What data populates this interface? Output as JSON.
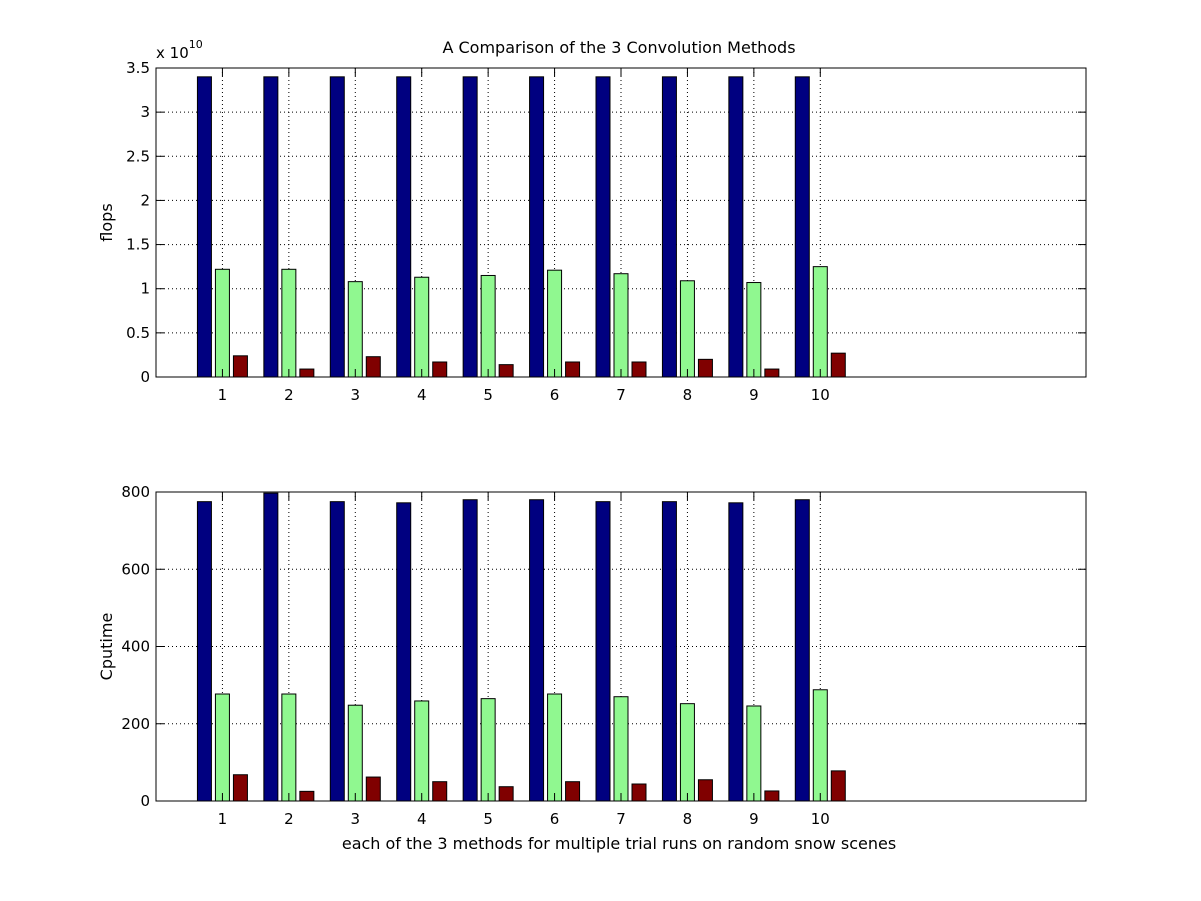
{
  "figure": {
    "title": "A Comparison of the 3 Convolution Methods"
  },
  "colors": {
    "series": [
      "#000080",
      "#90f890",
      "#800000"
    ],
    "axis": "#000000",
    "grid": "#000000",
    "background": "#ffffff"
  },
  "chart_data": [
    {
      "type": "bar",
      "title": "A Comparison of the 3 Convolution Methods",
      "xlabel": "",
      "ylabel": "flops",
      "y_exponent_label": "x 10",
      "y_exponent_power": "10",
      "categories": [
        "1",
        "2",
        "3",
        "4",
        "5",
        "6",
        "7",
        "8",
        "9",
        "10"
      ],
      "xlim": [
        0,
        14
      ],
      "ylim": [
        0,
        3.5
      ],
      "yticks": [
        0,
        0.5,
        1,
        1.5,
        2,
        2.5,
        3,
        3.5
      ],
      "ytick_labels": [
        "0",
        "0.5",
        "1",
        "1.5",
        "2",
        "2.5",
        "3",
        "3.5"
      ],
      "grid": true,
      "legend": "none",
      "series": [
        {
          "values": [
            3.4,
            3.4,
            3.4,
            3.4,
            3.4,
            3.4,
            3.4,
            3.4,
            3.4,
            3.4
          ]
        },
        {
          "values": [
            1.22,
            1.22,
            1.08,
            1.13,
            1.15,
            1.21,
            1.17,
            1.09,
            1.07,
            1.25
          ]
        },
        {
          "values": [
            0.24,
            0.09,
            0.23,
            0.17,
            0.14,
            0.17,
            0.17,
            0.2,
            0.09,
            0.27
          ]
        }
      ]
    },
    {
      "type": "bar",
      "title": "",
      "xlabel": "each of the 3 methods for multiple trial runs on random snow scenes",
      "ylabel": "Cputime",
      "categories": [
        "1",
        "2",
        "3",
        "4",
        "5",
        "6",
        "7",
        "8",
        "9",
        "10"
      ],
      "xlim": [
        0,
        14
      ],
      "ylim": [
        0,
        800
      ],
      "yticks": [
        0,
        200,
        400,
        600,
        800
      ],
      "ytick_labels": [
        "0",
        "200",
        "400",
        "600",
        "800"
      ],
      "grid": true,
      "legend": "none",
      "series": [
        {
          "values": [
            775,
            797,
            775,
            772,
            780,
            780,
            775,
            775,
            772,
            780
          ]
        },
        {
          "values": [
            277,
            277,
            248,
            259,
            265,
            277,
            270,
            252,
            246,
            288
          ]
        },
        {
          "values": [
            68,
            25,
            62,
            50,
            37,
            50,
            44,
            55,
            26,
            78
          ]
        }
      ]
    }
  ]
}
